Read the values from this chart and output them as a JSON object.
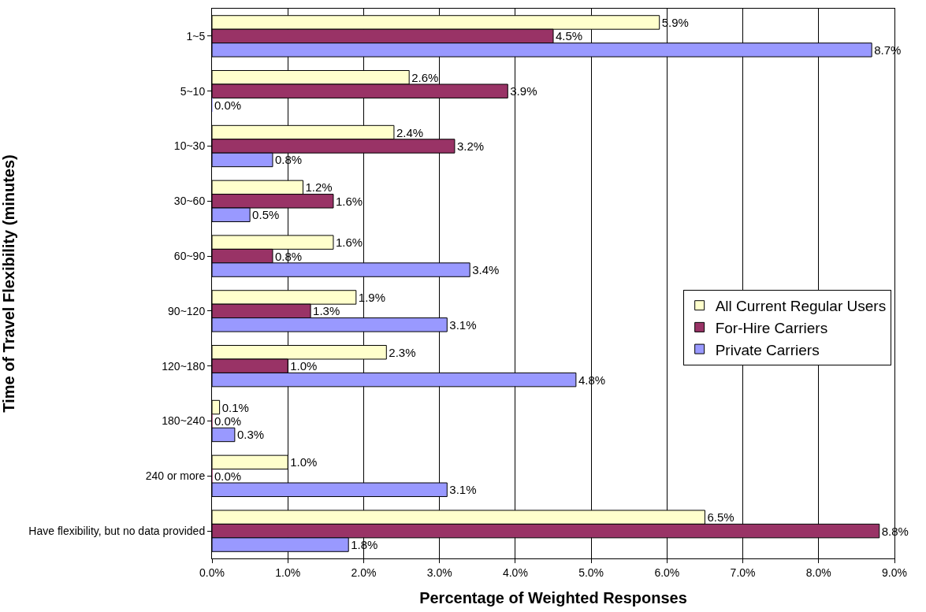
{
  "chart_data": {
    "type": "bar",
    "orientation": "horizontal",
    "xlabel": "Percentage of Weighted Responses",
    "ylabel": "Time of Travel Flexibility (minutes)",
    "categories": [
      "1~5",
      "5~10",
      "10~30",
      "30~60",
      "60~90",
      "90~120",
      "120~180",
      "180~240",
      "240 or more",
      "Have flexibility, but no data provided"
    ],
    "series": [
      {
        "name": "All Current Regular Users",
        "color": "#ffffcc",
        "values": [
          5.9,
          2.6,
          2.4,
          1.2,
          1.6,
          1.9,
          2.3,
          0.1,
          1.0,
          6.5
        ],
        "value_labels": [
          "5.9%",
          "2.6%",
          "2.4%",
          "1.2%",
          "1.6%",
          "1.9%",
          "2.3%",
          "0.1%",
          "1.0%",
          "6.5%"
        ]
      },
      {
        "name": "For-Hire Carriers",
        "color": "#993366",
        "values": [
          4.5,
          3.9,
          3.2,
          1.6,
          0.8,
          1.3,
          1.0,
          0.0,
          0.0,
          8.8
        ],
        "value_labels": [
          "4.5%",
          "3.9%",
          "3.2%",
          "1.6%",
          "0.8%",
          "1.3%",
          "1.0%",
          "0.0%",
          "0.0%",
          "8.8%"
        ]
      },
      {
        "name": "Private Carriers",
        "color": "#9999ff",
        "values": [
          8.7,
          0.0,
          0.8,
          0.5,
          3.4,
          3.1,
          4.8,
          0.3,
          3.1,
          1.8
        ],
        "value_labels": [
          "8.7%",
          "0.0%",
          "0.8%",
          "0.5%",
          "3.4%",
          "3.1%",
          "4.8%",
          "0.3%",
          "3.1%",
          "1.8%"
        ]
      }
    ],
    "xlim": [
      0,
      9
    ],
    "xticks": [
      {
        "value": 0,
        "label": "0.0%"
      },
      {
        "value": 1,
        "label": "1.0%"
      },
      {
        "value": 2,
        "label": "2.0%"
      },
      {
        "value": 3,
        "label": "3.0%"
      },
      {
        "value": 4,
        "label": "4.0%"
      },
      {
        "value": 5,
        "label": "5.0%"
      },
      {
        "value": 6,
        "label": "6.0%"
      },
      {
        "value": 7,
        "label": "7.0%"
      },
      {
        "value": 8,
        "label": "8.0%"
      },
      {
        "value": 9,
        "label": "9.0%"
      }
    ],
    "grid": "x",
    "legend": "right"
  }
}
